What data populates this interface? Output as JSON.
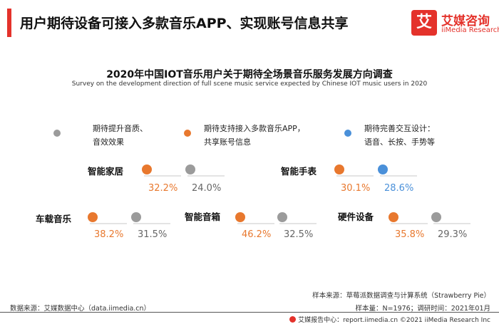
{
  "header": {
    "title": "用户期待设备可接入多款音乐APP、实现账号信息共享"
  },
  "logo": {
    "mark": "艾",
    "name_cn": "艾媒咨询",
    "name_en": "iiMedia Research"
  },
  "colors": {
    "grey": "#9b9b9b",
    "orange": "#e8782e",
    "blue": "#4a90d9",
    "accent": "#e4322b",
    "label_orange": "#e8782e",
    "label_grey": "#666666"
  },
  "chart_data": {
    "type": "scatter",
    "title": "2020年中国IOT音乐用户关于期待全场景音乐服务发展方向调查",
    "subtitle": "Survey on the development direction of full scene music service expected by Chinese IOT  music users in 2020",
    "legend_placement": "top",
    "legend": [
      {
        "lines": [
          "期待提升音质、",
          "音效效果"
        ],
        "color": "grey"
      },
      {
        "lines": [
          "期待支持接入多款音乐APP，",
          "共享账号信息"
        ],
        "color": "orange"
      },
      {
        "lines": [
          "期待完善交互设计：",
          "语音、长按、手势等"
        ],
        "color": "blue"
      }
    ],
    "groups": [
      {
        "name": "智能家居",
        "points": [
          {
            "color": "orange",
            "value": 32.2,
            "label": "32.2%"
          },
          {
            "color": "grey",
            "value": 24.0,
            "label": "24.0%"
          }
        ]
      },
      {
        "name": "智能手表",
        "points": [
          {
            "color": "orange",
            "value": 30.1,
            "label": "30.1%"
          },
          {
            "color": "blue",
            "value": 28.6,
            "label": "28.6%"
          }
        ]
      },
      {
        "name": "车载音乐",
        "points": [
          {
            "color": "orange",
            "value": 38.2,
            "label": "38.2%"
          },
          {
            "color": "grey",
            "value": 31.5,
            "label": "31.5%"
          }
        ]
      },
      {
        "name": "智能音箱",
        "points": [
          {
            "color": "orange",
            "value": 46.2,
            "label": "46.2%"
          },
          {
            "color": "grey",
            "value": 32.5,
            "label": "32.5%"
          }
        ]
      },
      {
        "name": "硬件设备",
        "points": [
          {
            "color": "orange",
            "value": 35.8,
            "label": "35.8%"
          },
          {
            "color": "grey",
            "value": 29.3,
            "label": "29.3%"
          }
        ]
      }
    ]
  },
  "footer": {
    "data_source": "数据来源：艾媒数据中心（data.iimedia.cn）",
    "sample_source": "样本来源：草莓派数据调查与计算系统（Strawberry Pie）",
    "sample_size": "样本量：N=1976；调研时间：2021年01月",
    "report_center": "艾媒报告中心：report.iimedia.cn ©2021  iiMedia Research Inc"
  }
}
